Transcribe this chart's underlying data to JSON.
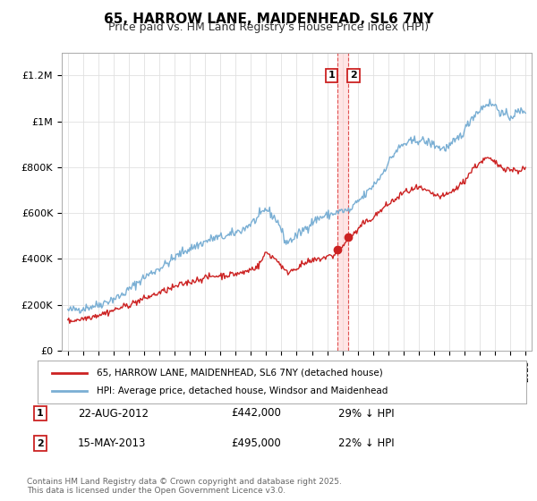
{
  "title": "65, HARROW LANE, MAIDENHEAD, SL6 7NY",
  "subtitle": "Price paid vs. HM Land Registry's House Price Index (HPI)",
  "title_fontsize": 11,
  "subtitle_fontsize": 9,
  "background_color": "#ffffff",
  "plot_bg_color": "#ffffff",
  "grid_color": "#e0e0e0",
  "legend_label_red": "65, HARROW LANE, MAIDENHEAD, SL6 7NY (detached house)",
  "legend_label_blue": "HPI: Average price, detached house, Windsor and Maidenhead",
  "red_color": "#cc2222",
  "blue_color": "#7aafd4",
  "footnote": "Contains HM Land Registry data © Crown copyright and database right 2025.\nThis data is licensed under the Open Government Licence v3.0.",
  "annotations": [
    {
      "n": 1,
      "date_str": "22-AUG-2012",
      "price": 442000,
      "pct": "29%",
      "direction": "↓"
    },
    {
      "n": 2,
      "date_str": "15-MAY-2013",
      "price": 495000,
      "pct": "22%",
      "direction": "↓"
    }
  ],
  "annotation_dates": [
    2012.644,
    2013.372
  ],
  "annotation_prices": [
    442000,
    495000
  ],
  "vline_color": "#dd4444",
  "vband_color": "#ffcccc",
  "ylim": [
    0,
    1300000
  ],
  "yticks": [
    0,
    200000,
    400000,
    600000,
    800000,
    1000000,
    1200000
  ],
  "ytick_labels": [
    "£0",
    "£200K",
    "£400K",
    "£600K",
    "£800K",
    "£1M",
    "£1.2M"
  ],
  "xmin": 1994.6,
  "xmax": 2025.4
}
